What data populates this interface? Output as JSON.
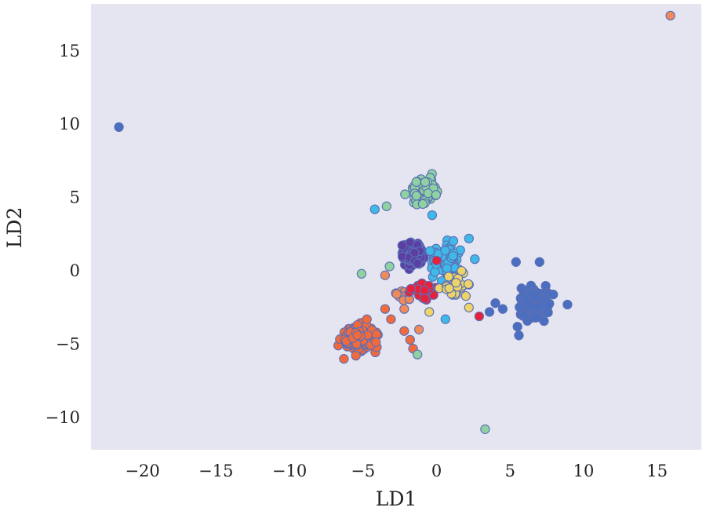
{
  "chart_data": {
    "type": "scatter",
    "title": "",
    "xlabel": "LD1",
    "ylabel": "LD2",
    "xlim": [
      -23.5,
      18
    ],
    "ylim": [
      -12.2,
      18.2
    ],
    "x_ticks": [
      {
        "value": -20,
        "label": "−20"
      },
      {
        "value": -15,
        "label": "−15"
      },
      {
        "value": -10,
        "label": "−10"
      },
      {
        "value": -5,
        "label": "−5"
      },
      {
        "value": 0,
        "label": "0"
      },
      {
        "value": 5,
        "label": "5"
      },
      {
        "value": 10,
        "label": "10"
      },
      {
        "value": 15,
        "label": "15"
      }
    ],
    "y_ticks": [
      {
        "value": -10,
        "label": "−10"
      },
      {
        "value": -5,
        "label": "−5"
      },
      {
        "value": 0,
        "label": "0"
      },
      {
        "value": 5,
        "label": "5"
      },
      {
        "value": 10,
        "label": "10"
      },
      {
        "value": 15,
        "label": "15"
      }
    ],
    "grid": false,
    "legend": "none",
    "background_color": "#e5e5f2",
    "edge_color": "#5a6fb5",
    "series": [
      {
        "color": "#4a6fc0",
        "center": [
          6.6,
          -2.2
        ],
        "spread": [
          0.75,
          0.8
        ],
        "count": 220,
        "points": [
          [
            -21.6,
            9.8
          ],
          [
            5.4,
            0.6
          ],
          [
            7,
            0.6
          ],
          [
            4,
            -2.2
          ],
          [
            8.9,
            -2.3
          ],
          [
            5.5,
            -3.8
          ],
          [
            5.6,
            -4.4
          ],
          [
            4.5,
            -2.6
          ],
          [
            3.6,
            -2.8
          ]
        ]
      },
      {
        "color": "#f26a3c",
        "center": [
          -5.2,
          -4.6
        ],
        "spread": [
          0.8,
          0.65
        ],
        "count": 170,
        "points": [
          [
            -3.5,
            -2.6
          ],
          [
            -3.1,
            -3.3
          ],
          [
            -2.2,
            -4.1
          ],
          [
            -1.8,
            -4.7
          ],
          [
            -1.6,
            -5.3
          ],
          [
            -6.3,
            -6
          ]
        ]
      },
      {
        "color": "#f08a5b",
        "center": [
          -2.3,
          -1.7
        ],
        "spread": [
          0.5,
          0.4
        ],
        "count": 10,
        "points": [
          [
            15.9,
            17.4
          ],
          [
            -3.5,
            -0.3
          ],
          [
            -2.2,
            -2.6
          ],
          [
            -1.2,
            -4
          ]
        ]
      },
      {
        "color": "#5b3fa3",
        "center": [
          -1.6,
          1.1
        ],
        "spread": [
          0.55,
          0.55
        ],
        "count": 150,
        "points": []
      },
      {
        "color": "#8fd1a0",
        "center": [
          -1,
          5.4
        ],
        "spread": [
          0.75,
          0.85
        ],
        "count": 90,
        "points": [
          [
            3.3,
            -10.8
          ],
          [
            -3.4,
            4.4
          ],
          [
            -5.1,
            -0.2
          ],
          [
            -1.3,
            -5.7
          ],
          [
            -3.2,
            0.3
          ]
        ]
      },
      {
        "color": "#40b8e8",
        "center": [
          0.6,
          0.7
        ],
        "spread": [
          0.75,
          0.95
        ],
        "count": 110,
        "points": [
          [
            -4.2,
            4.2
          ],
          [
            2.2,
            2.2
          ],
          [
            2.6,
            0.8
          ],
          [
            0.6,
            -3.3
          ],
          [
            -0.3,
            3.8
          ]
        ]
      },
      {
        "color": "#e8203a",
        "center": [
          -0.9,
          -1.4
        ],
        "spread": [
          0.6,
          0.45
        ],
        "count": 50,
        "points": [
          [
            2.9,
            -3.1
          ],
          [
            0,
            0.7
          ]
        ]
      },
      {
        "color": "#ecd468",
        "center": [
          1.2,
          -1
        ],
        "spread": [
          0.65,
          0.55
        ],
        "count": 30,
        "points": [
          [
            2.2,
            -2.5
          ],
          [
            -0.5,
            -2.8
          ],
          [
            1.7,
            0
          ]
        ]
      }
    ]
  }
}
